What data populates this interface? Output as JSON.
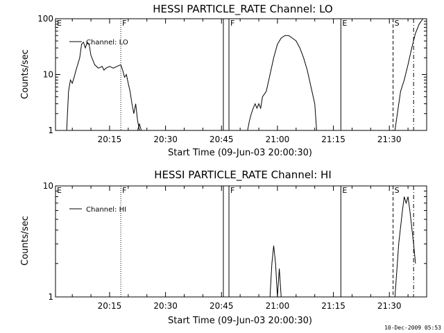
{
  "footer": {
    "timestamp": "10-Dec-2009 05:53"
  },
  "chart_data": [
    {
      "type": "line",
      "title": "HESSI PARTICLE_RATE Channel: LO",
      "xlabel": "Start Time (09-Jun-03 20:00:30)",
      "ylabel": "Counts/sec",
      "yscale": "log",
      "xlim": [
        "20:00:30",
        "21:40:00"
      ],
      "ylim": [
        1,
        100
      ],
      "x_ticks": [
        "20:15",
        "20:30",
        "20:45",
        "21:00",
        "21:15",
        "21:30"
      ],
      "y_ticks": [
        "1",
        "10",
        "100"
      ],
      "legend": {
        "position": "top-left",
        "entries": [
          "Channel: LO"
        ]
      },
      "markers": [
        {
          "label": "E",
          "time": "20:00:30",
          "style": "none"
        },
        {
          "label": "F",
          "time": "20:18:00",
          "style": "dotted"
        },
        {
          "label": "",
          "time": "20:45:30",
          "style": "solid"
        },
        {
          "label": "F",
          "time": "20:47:00",
          "style": "solid"
        },
        {
          "label": "E",
          "time": "21:17:00",
          "style": "solid"
        },
        {
          "label": "S",
          "time": "21:31:00",
          "style": "dashed"
        },
        {
          "label": "",
          "time": "21:36:30",
          "style": "dashdot"
        }
      ],
      "series": [
        {
          "name": "Channel: LO",
          "segments": [
            [
              [
                "20:03:30",
                1
              ],
              [
                "20:04:00",
                5
              ],
              [
                "20:04:30",
                8
              ],
              [
                "20:05:00",
                7
              ],
              [
                "20:05:30",
                9
              ],
              [
                "20:06:00",
                12
              ],
              [
                "20:07:00",
                20
              ],
              [
                "20:07:30",
                35
              ],
              [
                "20:08:00",
                38
              ],
              [
                "20:08:30",
                30
              ],
              [
                "20:09:00",
                38
              ],
              [
                "20:09:30",
                35
              ],
              [
                "20:10:00",
                22
              ],
              [
                "20:11:00",
                15
              ],
              [
                "20:12:00",
                13
              ],
              [
                "20:13:00",
                14
              ],
              [
                "20:13:30",
                12
              ],
              [
                "20:14:00",
                13
              ],
              [
                "20:15:00",
                14
              ],
              [
                "20:16:00",
                13
              ],
              [
                "20:17:00",
                14
              ],
              [
                "20:18:00",
                15
              ],
              [
                "20:18:30",
                12
              ],
              [
                "20:19:00",
                9
              ],
              [
                "20:19:30",
                10
              ],
              [
                "20:20:00",
                7
              ],
              [
                "20:20:30",
                5
              ],
              [
                "20:21:00",
                3
              ],
              [
                "20:21:30",
                2
              ],
              [
                "20:22:00",
                3
              ],
              [
                "20:22:30",
                1.5
              ],
              [
                "20:23:00",
                1
              ]
            ],
            [
              [
                "20:22:30",
                1
              ],
              [
                "20:23:00",
                1.3
              ],
              [
                "20:23:30",
                1
              ]
            ],
            [
              [
                "20:52:00",
                1
              ],
              [
                "20:52:30",
                1.5
              ],
              [
                "20:53:00",
                2
              ],
              [
                "20:53:30",
                2.5
              ],
              [
                "20:54:00",
                3
              ],
              [
                "20:54:30",
                2.5
              ],
              [
                "20:55:00",
                3
              ],
              [
                "20:55:30",
                2.5
              ],
              [
                "20:56:00",
                4
              ],
              [
                "20:57:00",
                5
              ],
              [
                "20:58:00",
                10
              ],
              [
                "20:59:00",
                20
              ],
              [
                "21:00:00",
                35
              ],
              [
                "21:01:00",
                45
              ],
              [
                "21:02:00",
                50
              ],
              [
                "21:03:00",
                50
              ],
              [
                "21:04:00",
                45
              ],
              [
                "21:05:00",
                40
              ],
              [
                "21:06:00",
                30
              ],
              [
                "21:07:00",
                20
              ],
              [
                "21:08:00",
                12
              ],
              [
                "21:09:00",
                6
              ],
              [
                "21:10:00",
                3
              ],
              [
                "21:10:30",
                1
              ]
            ],
            [
              [
                "21:31:30",
                1
              ],
              [
                "21:33:00",
                5
              ],
              [
                "21:34:00",
                8
              ],
              [
                "21:35:00",
                15
              ],
              [
                "21:36:00",
                30
              ],
              [
                "21:37:00",
                55
              ],
              [
                "21:38:00",
                80
              ],
              [
                "21:39:00",
                100
              ]
            ]
          ]
        }
      ]
    },
    {
      "type": "line",
      "title": "HESSI PARTICLE_RATE Channel: HI",
      "xlabel": "Start Time (09-Jun-03 20:00:30)",
      "ylabel": "Counts/sec",
      "yscale": "log",
      "xlim": [
        "20:00:30",
        "21:40:00"
      ],
      "ylim": [
        1,
        10
      ],
      "x_ticks": [
        "20:15",
        "20:30",
        "20:45",
        "21:00",
        "21:15",
        "21:30"
      ],
      "y_ticks": [
        "1",
        "10"
      ],
      "legend": {
        "position": "top-left",
        "entries": [
          "Channel: HI"
        ]
      },
      "markers": [
        {
          "label": "E",
          "time": "20:00:30",
          "style": "none"
        },
        {
          "label": "F",
          "time": "20:18:00",
          "style": "dotted"
        },
        {
          "label": "",
          "time": "20:45:30",
          "style": "solid"
        },
        {
          "label": "F",
          "time": "20:47:00",
          "style": "solid"
        },
        {
          "label": "E",
          "time": "21:17:00",
          "style": "solid"
        },
        {
          "label": "S",
          "time": "21:31:00",
          "style": "dashed"
        },
        {
          "label": "",
          "time": "21:36:30",
          "style": "dashdot"
        }
      ],
      "series": [
        {
          "name": "Channel: HI",
          "segments": [
            [
              [
                "20:58:00",
                1
              ],
              [
                "20:58:30",
                2
              ],
              [
                "20:59:00",
                2.9
              ],
              [
                "20:59:30",
                2
              ],
              [
                "21:00:00",
                1
              ]
            ],
            [
              [
                "21:00:00",
                1
              ],
              [
                "21:00:30",
                1.8
              ],
              [
                "21:01:00",
                1
              ]
            ],
            [
              [
                "21:31:30",
                1
              ],
              [
                "21:32:30",
                3
              ],
              [
                "21:33:30",
                6
              ],
              [
                "21:34:00",
                8
              ],
              [
                "21:34:30",
                7
              ],
              [
                "21:35:00",
                8
              ],
              [
                "21:35:30",
                6
              ],
              [
                "21:36:30",
                3
              ],
              [
                "21:37:00",
                2
              ]
            ]
          ]
        }
      ]
    }
  ]
}
